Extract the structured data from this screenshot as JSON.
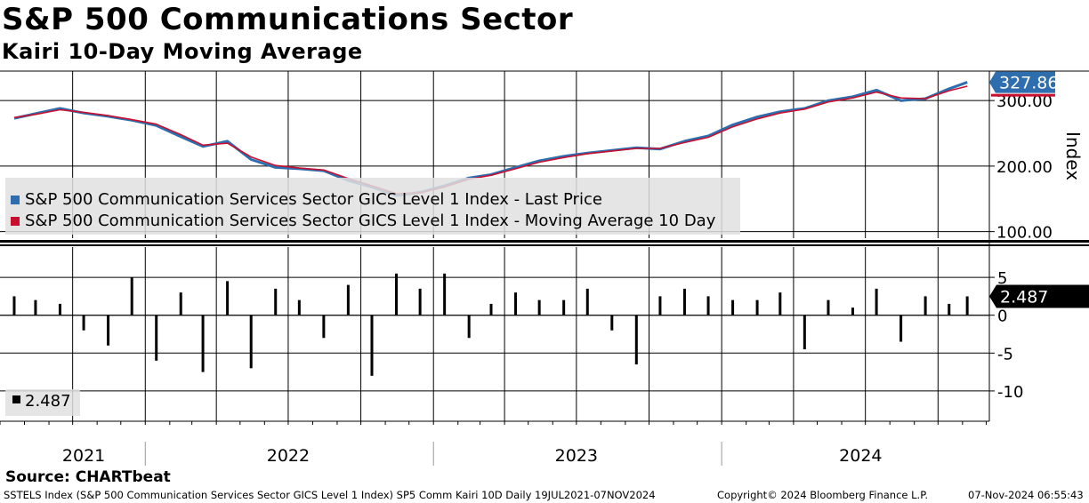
{
  "title": "S&P 500 Communications Sector",
  "subtitle": "Kairi 10-Day Moving Average",
  "source": "Source: CHARTbeat",
  "footer": {
    "left": "SSTELS Index (S&P 500 Communication Services Sector GICS Level 1 Index) SP5 Comm Kairi 10D  Daily 19JUL2021-07NOV2024",
    "center": "Copyright© 2024 Bloomberg Finance L.P.",
    "right": "07-Nov-2024 06:55:43"
  },
  "colors": {
    "price": "#2e6dae",
    "ma": "#c8102e",
    "kairi": "#000000",
    "legend_bg": "#e1e1e1"
  },
  "chart_data": [
    {
      "type": "line",
      "ylabel": "Index",
      "ylim": [
        90,
        345
      ],
      "y_ticks": [
        "100.00",
        "200.00",
        "300.00"
      ],
      "x_labels": [
        "2021",
        "2022",
        "2023",
        "2024"
      ],
      "last_value_label": "327.86",
      "x": [
        "2021-07-19",
        "2021-08-15",
        "2021-09-15",
        "2021-10-15",
        "2021-11-15",
        "2021-12-15",
        "2022-01-15",
        "2022-02-15",
        "2022-03-15",
        "2022-04-15",
        "2022-05-15",
        "2022-06-15",
        "2022-07-15",
        "2022-08-15",
        "2022-09-15",
        "2022-10-15",
        "2022-11-15",
        "2022-12-15",
        "2023-01-15",
        "2023-02-15",
        "2023-03-15",
        "2023-04-15",
        "2023-05-15",
        "2023-06-15",
        "2023-07-15",
        "2023-08-15",
        "2023-09-15",
        "2023-10-15",
        "2023-11-15",
        "2023-12-15",
        "2024-01-15",
        "2024-02-15",
        "2024-03-15",
        "2024-04-15",
        "2024-05-15",
        "2024-06-15",
        "2024-07-15",
        "2024-08-15",
        "2024-09-15",
        "2024-10-15",
        "2024-11-07"
      ],
      "series": [
        {
          "name": "S&P 500 Communication Services Sector GICS Level 1 Index - Last Price",
          "values": [
            273,
            280,
            288,
            281,
            276,
            270,
            262,
            245,
            230,
            238,
            210,
            198,
            196,
            193,
            178,
            168,
            155,
            160,
            170,
            182,
            187,
            198,
            208,
            215,
            220,
            224,
            228,
            226,
            238,
            246,
            263,
            275,
            283,
            288,
            300,
            306,
            316,
            300,
            303,
            318,
            327.86
          ]
        },
        {
          "name": "S&P 500 Communication Services Sector GICS Level 1 Index - Moving Average 10 Day",
          "values": [
            274,
            279,
            286,
            282,
            277,
            271,
            264,
            248,
            232,
            235,
            214,
            201,
            197,
            194,
            181,
            170,
            158,
            159,
            168,
            180,
            186,
            196,
            206,
            213,
            219,
            223,
            227,
            227,
            236,
            244,
            260,
            272,
            281,
            287,
            298,
            304,
            313,
            304,
            303,
            315,
            322
          ]
        }
      ]
    },
    {
      "type": "bar",
      "name": "2.487",
      "ylim": [
        -14,
        9
      ],
      "y_ticks": [
        "5",
        "0",
        "-5",
        "-10"
      ],
      "last_value_label": "2.487",
      "x": [
        "2021-07-19",
        "2021-08-15",
        "2021-09-15",
        "2021-10-15",
        "2021-11-15",
        "2021-12-15",
        "2022-01-15",
        "2022-02-15",
        "2022-03-15",
        "2022-04-15",
        "2022-05-15",
        "2022-06-15",
        "2022-07-15",
        "2022-08-15",
        "2022-09-15",
        "2022-10-15",
        "2022-11-15",
        "2022-12-15",
        "2023-01-15",
        "2023-02-15",
        "2023-03-15",
        "2023-04-15",
        "2023-05-15",
        "2023-06-15",
        "2023-07-15",
        "2023-08-15",
        "2023-09-15",
        "2023-10-15",
        "2023-11-15",
        "2023-12-15",
        "2024-01-15",
        "2024-02-15",
        "2024-03-15",
        "2024-04-15",
        "2024-05-15",
        "2024-06-15",
        "2024-07-15",
        "2024-08-15",
        "2024-09-15",
        "2024-10-15",
        "2024-11-07"
      ],
      "values": [
        2.5,
        2.0,
        1.5,
        -2.0,
        -4.0,
        5.0,
        -6.0,
        3.0,
        -7.5,
        4.5,
        -7.0,
        3.5,
        2.0,
        -3.0,
        4.0,
        -8.0,
        5.5,
        3.5,
        5.5,
        -3.0,
        1.5,
        3.0,
        2.0,
        2.0,
        3.5,
        -2.0,
        -6.5,
        2.5,
        3.5,
        2.5,
        2.0,
        2.0,
        3.0,
        -4.5,
        2.0,
        1.0,
        3.5,
        -3.5,
        2.5,
        1.5,
        2.487
      ]
    }
  ]
}
